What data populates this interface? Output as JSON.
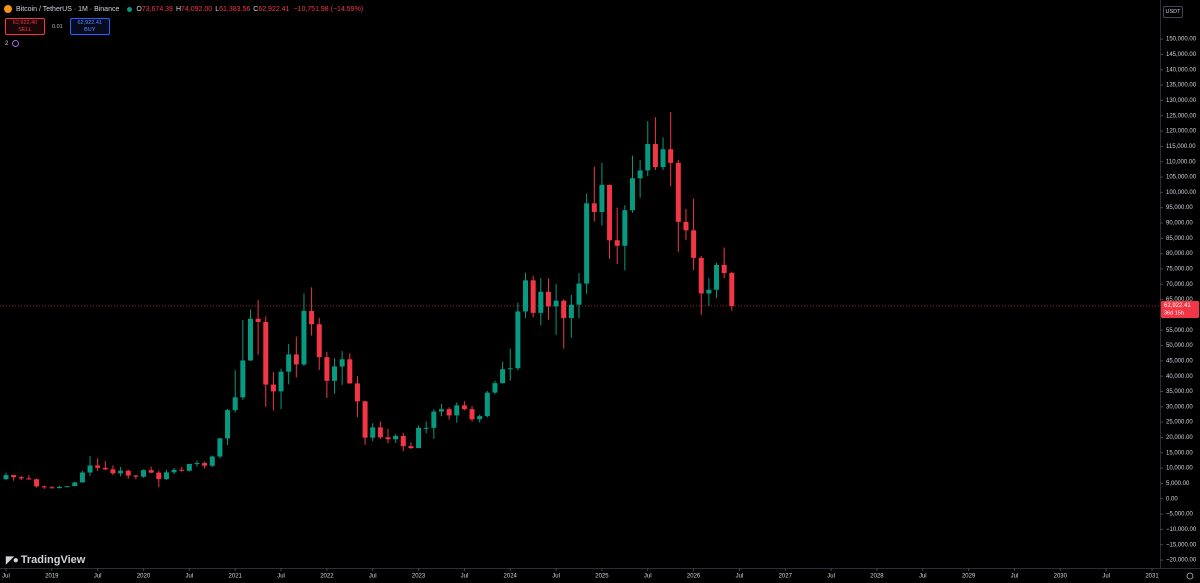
{
  "chart_data": {
    "type": "candlestick",
    "header": {
      "symbol": "Bitcoin / TetherUS · 1M · Binance",
      "ohlc": [
        {
          "key": "O",
          "value": "73,674.39"
        },
        {
          "key": "H",
          "value": "74,092.00"
        },
        {
          "key": "L",
          "value": "61,383.56"
        },
        {
          "key": "C",
          "value": "62,922.41"
        }
      ],
      "change": "−10,751.98 (−14.59%)",
      "sell_price": "62,922.40",
      "sell": "SELL",
      "spread": "0.01",
      "buy_price": "62,922.41",
      "buy": "BUY",
      "indicators": "2"
    },
    "currency": "USDT",
    "brand": "TradingView",
    "up_color": "#089981",
    "down_color": "#f23645",
    "grid": false,
    "last_price": {
      "value": 62922.41,
      "label": "62,922.41",
      "countdown": "36d 15h"
    },
    "x": [
      "2018-07",
      "2018-08",
      "2018-09",
      "2018-10",
      "2018-11",
      "2018-12",
      "2019-01",
      "2019-02",
      "2019-03",
      "2019-04",
      "2019-05",
      "2019-06",
      "2019-07",
      "2019-08",
      "2019-09",
      "2019-10",
      "2019-11",
      "2019-12",
      "2020-01",
      "2020-02",
      "2020-03",
      "2020-04",
      "2020-05",
      "2020-06",
      "2020-07",
      "2020-08",
      "2020-09",
      "2020-10",
      "2020-11",
      "2020-12",
      "2021-01",
      "2021-02",
      "2021-03",
      "2021-04",
      "2021-05",
      "2021-06",
      "2021-07",
      "2021-08",
      "2021-09",
      "2021-10",
      "2021-11",
      "2021-12",
      "2022-01",
      "2022-02",
      "2022-03",
      "2022-04",
      "2022-05",
      "2022-06",
      "2022-07",
      "2022-08",
      "2022-09",
      "2022-10",
      "2022-11",
      "2022-12",
      "2023-01",
      "2023-02",
      "2023-03",
      "2023-04",
      "2023-05",
      "2023-06",
      "2023-07",
      "2023-08",
      "2023-09",
      "2023-10",
      "2023-11",
      "2023-12",
      "2024-01",
      "2024-02",
      "2024-03",
      "2024-04",
      "2024-05",
      "2024-06",
      "2024-07",
      "2024-08",
      "2024-09",
      "2024-10",
      "2024-11",
      "2024-12",
      "2025-01",
      "2025-02",
      "2025-03",
      "2025-04",
      "2025-05",
      "2025-06",
      "2025-07",
      "2025-08",
      "2025-09",
      "2025-10",
      "2025-11",
      "2025-12",
      "2026-01",
      "2026-02",
      "2026-03",
      "2026-04",
      "2026-05",
      "2026-06"
    ],
    "open": [
      6390,
      7730,
      7030,
      6630,
      6370,
      4040,
      3740,
      3460,
      3850,
      4100,
      5320,
      8570,
      10850,
      10090,
      9600,
      8290,
      9140,
      7570,
      7190,
      9350,
      8520,
      6410,
      8620,
      9450,
      9140,
      11340,
      11650,
      10780,
      13790,
      19700,
      28920,
      33090,
      45140,
      58740,
      57690,
      37250,
      35040,
      41460,
      47100,
      43820,
      61300,
      56950,
      46200,
      38470,
      43160,
      45510,
      37630,
      31800,
      19940,
      23290,
      20050,
      19420,
      20490,
      17160,
      16540,
      23130,
      23140,
      28470,
      29230,
      27210,
      30470,
      29230,
      25940,
      26960,
      34640,
      37720,
      42280,
      42580,
      61130,
      71280,
      60670,
      67540,
      62770,
      64630,
      58970,
      63330,
      70220,
      96410,
      93580,
      102430,
      84350,
      82550,
      94170,
      104590,
      107140,
      115760,
      108250,
      114050,
      109600,
      90360,
      87600,
      78600,
      67000,
      68200,
      76300,
      73674.39
    ],
    "high": [
      8500,
      7760,
      7410,
      7680,
      6600,
      4310,
      4140,
      4200,
      4120,
      5600,
      9100,
      13970,
      13200,
      12330,
      10900,
      10370,
      9520,
      7750,
      9580,
      10500,
      9190,
      9470,
      10070,
      10380,
      11450,
      12470,
      12070,
      14100,
      19860,
      29300,
      41950,
      58350,
      61790,
      64850,
      59500,
      41330,
      42450,
      50500,
      52920,
      67000,
      69000,
      59050,
      47990,
      45820,
      48190,
      47440,
      40020,
      31980,
      24670,
      25210,
      22800,
      21080,
      21480,
      18390,
      23960,
      25250,
      29180,
      31000,
      29820,
      31430,
      31800,
      30230,
      27480,
      35200,
      38450,
      44700,
      48970,
      64000,
      73780,
      72800,
      71980,
      71950,
      70080,
      65100,
      66500,
      73620,
      99590,
      108350,
      109590,
      102500,
      95000,
      95760,
      111980,
      110530,
      123220,
      124470,
      117900,
      126200,
      110600,
      94600,
      97900,
      79300,
      72000,
      77000,
      82000,
      74092
    ],
    "low": [
      6070,
      5880,
      6100,
      6200,
      3650,
      3160,
      3350,
      3400,
      3790,
      4070,
      5300,
      7450,
      9100,
      9320,
      7710,
      7300,
      6520,
      6430,
      6870,
      8410,
      3780,
      6150,
      8110,
      8830,
      8900,
      10520,
      9880,
      10370,
      13200,
      17570,
      28130,
      32300,
      44950,
      47040,
      30000,
      28800,
      29280,
      37330,
      39600,
      43280,
      53260,
      42000,
      32920,
      34300,
      37150,
      37580,
      26700,
      17620,
      18780,
      19520,
      18130,
      18190,
      15480,
      16250,
      16500,
      21350,
      19550,
      26940,
      25810,
      24800,
      28860,
      25170,
      24900,
      26540,
      34110,
      37630,
      38560,
      41880,
      59000,
      59190,
      56550,
      58400,
      53500,
      49000,
      52550,
      58900,
      66830,
      90500,
      89160,
      78260,
      76600,
      74500,
      93340,
      98200,
      105270,
      107300,
      107270,
      102000,
      80600,
      84400,
      74600,
      60000,
      63000,
      65500,
      72000,
      61383.56
    ],
    "close": [
      7730,
      7030,
      6630,
      6370,
      4040,
      3740,
      3460,
      3850,
      4100,
      5320,
      8570,
      10850,
      10090,
      9600,
      8290,
      9140,
      7570,
      7190,
      9350,
      8520,
      6410,
      8620,
      9450,
      9140,
      11340,
      11650,
      10780,
      13790,
      19700,
      28920,
      33090,
      45140,
      58740,
      57690,
      37250,
      35040,
      41460,
      47100,
      43820,
      61300,
      56950,
      46200,
      38470,
      43160,
      45510,
      37630,
      31800,
      19940,
      23290,
      20050,
      19420,
      20490,
      17160,
      16540,
      23130,
      23140,
      28470,
      29230,
      27210,
      30470,
      29230,
      25940,
      26960,
      34640,
      37720,
      42280,
      42580,
      61130,
      71280,
      60670,
      67540,
      62770,
      64630,
      58970,
      63330,
      70220,
      96410,
      93580,
      102430,
      84350,
      82550,
      94170,
      104590,
      107140,
      115760,
      108250,
      114050,
      109600,
      90360,
      87600,
      78600,
      67000,
      68200,
      76300,
      73674.39,
      62922.41
    ],
    "xlim": [
      "2018-07",
      "2031-01"
    ],
    "xticks": [
      {
        "value": "2018-07",
        "label": "Jul"
      },
      {
        "value": "2019-01",
        "label": "2019"
      },
      {
        "value": "2019-07",
        "label": "Jul"
      },
      {
        "value": "2020-01",
        "label": "2020"
      },
      {
        "value": "2020-07",
        "label": "Jul"
      },
      {
        "value": "2021-01",
        "label": "2021"
      },
      {
        "value": "2021-07",
        "label": "Jul"
      },
      {
        "value": "2022-01",
        "label": "2022"
      },
      {
        "value": "2022-07",
        "label": "Jul"
      },
      {
        "value": "2023-01",
        "label": "2023"
      },
      {
        "value": "2023-07",
        "label": "Jul"
      },
      {
        "value": "2024-01",
        "label": "2024"
      },
      {
        "value": "2024-07",
        "label": "Jul"
      },
      {
        "value": "2025-01",
        "label": "2025"
      },
      {
        "value": "2025-07",
        "label": "Jul"
      },
      {
        "value": "2026-01",
        "label": "2026"
      },
      {
        "value": "2026-07",
        "label": "Jul"
      },
      {
        "value": "2027-01",
        "label": "2027"
      },
      {
        "value": "2027-07",
        "label": "Jul"
      },
      {
        "value": "2028-01",
        "label": "2028"
      },
      {
        "value": "2028-07",
        "label": "Jul"
      },
      {
        "value": "2029-01",
        "label": "2029"
      },
      {
        "value": "2029-07",
        "label": "Jul"
      },
      {
        "value": "2030-01",
        "label": "2030"
      },
      {
        "value": "2030-07",
        "label": "Jul"
      },
      {
        "value": "2031-01",
        "label": "2031"
      }
    ],
    "ylim": [
      -22600,
      159500
    ],
    "yticks": [
      {
        "value": 150000,
        "label": "150,000.00"
      },
      {
        "value": 145000,
        "label": "145,000.00"
      },
      {
        "value": 140000,
        "label": "140,000.00"
      },
      {
        "value": 135000,
        "label": "135,000.00"
      },
      {
        "value": 130000,
        "label": "130,000.00"
      },
      {
        "value": 125000,
        "label": "125,000.00"
      },
      {
        "value": 120000,
        "label": "120,000.00"
      },
      {
        "value": 115000,
        "label": "115,000.00"
      },
      {
        "value": 110000,
        "label": "110,000.00"
      },
      {
        "value": 105000,
        "label": "105,000.00"
      },
      {
        "value": 100000,
        "label": "100,000.00"
      },
      {
        "value": 95000,
        "label": "95,000.00"
      },
      {
        "value": 90000,
        "label": "90,000.00"
      },
      {
        "value": 85000,
        "label": "85,000.00"
      },
      {
        "value": 80000,
        "label": "80,000.00"
      },
      {
        "value": 75000,
        "label": "75,000.00"
      },
      {
        "value": 70000,
        "label": "70,000.00"
      },
      {
        "value": 65000,
        "label": "65,000.00"
      },
      {
        "value": 60000,
        "label": "60,000.00"
      },
      {
        "value": 55000,
        "label": "55,000.00"
      },
      {
        "value": 50000,
        "label": "50,000.00"
      },
      {
        "value": 45000,
        "label": "45,000.00"
      },
      {
        "value": 40000,
        "label": "40,000.00"
      },
      {
        "value": 35000,
        "label": "35,000.00"
      },
      {
        "value": 30000,
        "label": "30,000.00"
      },
      {
        "value": 25000,
        "label": "25,000.00"
      },
      {
        "value": 20000,
        "label": "20,000.00"
      },
      {
        "value": 15000,
        "label": "15,000.00"
      },
      {
        "value": 10000,
        "label": "10,000.00"
      },
      {
        "value": 5000,
        "label": "5,000.00"
      },
      {
        "value": 0,
        "label": "0.00"
      },
      {
        "value": -5000,
        "label": "−5,000.00"
      },
      {
        "value": -10000,
        "label": "−10,000.00"
      },
      {
        "value": -15000,
        "label": "−15,000.00"
      },
      {
        "value": -20000,
        "label": "−20,000.00"
      }
    ]
  }
}
